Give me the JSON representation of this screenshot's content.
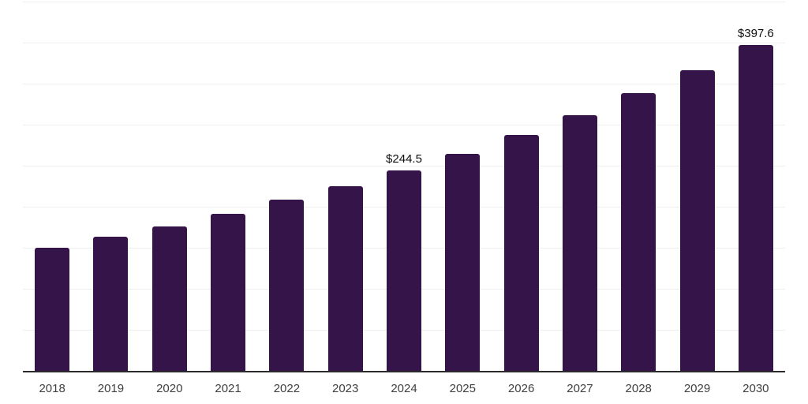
{
  "chart_data": {
    "type": "bar",
    "title": "",
    "xlabel": "",
    "ylabel": "",
    "categories": [
      "2018",
      "2019",
      "2020",
      "2021",
      "2022",
      "2023",
      "2024",
      "2025",
      "2026",
      "2027",
      "2028",
      "2029",
      "2030"
    ],
    "values": [
      150.4,
      163.8,
      176.3,
      191.6,
      208.9,
      225.1,
      244.5,
      264.4,
      287.4,
      311.4,
      338.2,
      366.0,
      397.6
    ],
    "bar_labels": [
      "",
      "",
      "",
      "",
      "",
      "",
      "$244.5",
      "",
      "",
      "",
      "",
      "",
      "$397.6"
    ],
    "ylim": [
      0,
      450
    ],
    "grid": "horizontal-only",
    "grid_interval": 50,
    "y_tick_labels_visible": false,
    "legend": "none",
    "colors": {
      "bar": "#341449",
      "gridline": "#efefef",
      "axis_line": "#2b2b2b",
      "x_tick_label": "#3f3f3f",
      "value_label": "#101010",
      "background": "#ffffff"
    }
  }
}
